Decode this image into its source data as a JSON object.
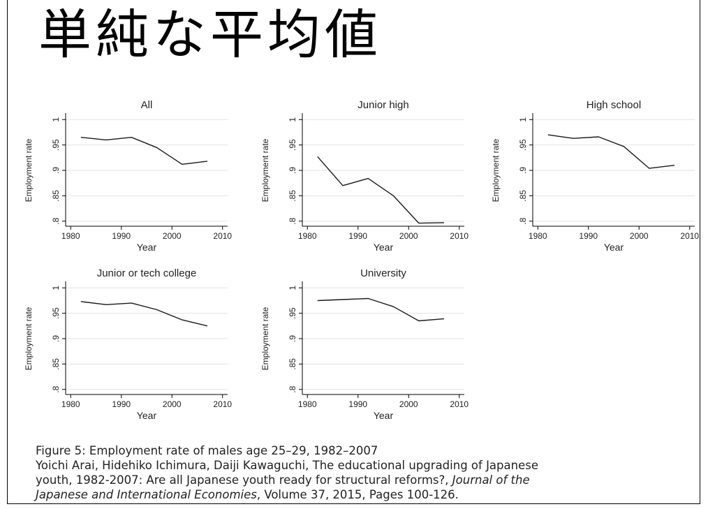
{
  "slide": {
    "title": "単純な平均値"
  },
  "chart_data": [
    {
      "type": "line",
      "title": "All",
      "xlabel": "Year",
      "ylabel": "Employment rate",
      "x": [
        1982,
        1987,
        1992,
        1997,
        2002,
        2007
      ],
      "y": [
        0.965,
        0.96,
        0.965,
        0.945,
        0.912,
        0.918
      ],
      "xlim": [
        1979,
        2011
      ],
      "ylim": [
        0.79,
        1.01
      ],
      "xticks": [
        1980,
        1990,
        2000,
        2010
      ],
      "xtick_labels": [
        "1980",
        "1990",
        "2000",
        "2010"
      ],
      "yticks": [
        0.8,
        0.85,
        0.9,
        0.95,
        1
      ],
      "ytick_labels": [
        ".8",
        ".85",
        ".9",
        ".95",
        "1"
      ],
      "grid": true
    },
    {
      "type": "line",
      "title": "Junior high",
      "xlabel": "Year",
      "ylabel": "Employment rate",
      "x": [
        1982,
        1987,
        1992,
        1997,
        2002,
        2007
      ],
      "y": [
        0.927,
        0.87,
        0.884,
        0.85,
        0.796,
        0.797
      ],
      "xlim": [
        1979,
        2011
      ],
      "ylim": [
        0.79,
        1.01
      ],
      "xticks": [
        1980,
        1990,
        2000,
        2010
      ],
      "xtick_labels": [
        "1980",
        "1990",
        "2000",
        "2010"
      ],
      "yticks": [
        0.8,
        0.85,
        0.9,
        0.95,
        1
      ],
      "ytick_labels": [
        ".8",
        ".85",
        ".9",
        ".95",
        "1"
      ],
      "grid": true
    },
    {
      "type": "line",
      "title": "High school",
      "xlabel": "Year",
      "ylabel": "Employment rate",
      "x": [
        1982,
        1987,
        1992,
        1997,
        2002,
        2007
      ],
      "y": [
        0.97,
        0.963,
        0.966,
        0.947,
        0.904,
        0.91
      ],
      "xlim": [
        1979,
        2011
      ],
      "ylim": [
        0.79,
        1.01
      ],
      "xticks": [
        1980,
        1990,
        2000,
        2010
      ],
      "xtick_labels": [
        "1980",
        "1990",
        "2000",
        "2010"
      ],
      "yticks": [
        0.8,
        0.85,
        0.9,
        0.95,
        1
      ],
      "ytick_labels": [
        ".8",
        ".85",
        ".9",
        ".95",
        "1"
      ],
      "grid": true
    },
    {
      "type": "line",
      "title": "Junior or tech college",
      "xlabel": "Year",
      "ylabel": "Employment rate",
      "x": [
        1982,
        1987,
        1992,
        1997,
        2002,
        2007
      ],
      "y": [
        0.973,
        0.967,
        0.97,
        0.957,
        0.937,
        0.925
      ],
      "xlim": [
        1979,
        2011
      ],
      "ylim": [
        0.79,
        1.01
      ],
      "xticks": [
        1980,
        1990,
        2000,
        2010
      ],
      "xtick_labels": [
        "1980",
        "1990",
        "2000",
        "2010"
      ],
      "yticks": [
        0.8,
        0.85,
        0.9,
        0.95,
        1
      ],
      "ytick_labels": [
        ".8",
        ".85",
        ".9",
        ".95",
        "1"
      ],
      "grid": true
    },
    {
      "type": "line",
      "title": "University",
      "xlabel": "Year",
      "ylabel": "Employment rate",
      "x": [
        1982,
        1987,
        1992,
        1997,
        2002,
        2007
      ],
      "y": [
        0.975,
        0.977,
        0.979,
        0.963,
        0.935,
        0.939
      ],
      "xlim": [
        1979,
        2011
      ],
      "ylim": [
        0.79,
        1.01
      ],
      "xticks": [
        1980,
        1990,
        2000,
        2010
      ],
      "xtick_labels": [
        "1980",
        "1990",
        "2000",
        "2010"
      ],
      "yticks": [
        0.8,
        0.85,
        0.9,
        0.95,
        1
      ],
      "ytick_labels": [
        ".8",
        ".85",
        ".9",
        ".95",
        "1"
      ],
      "grid": true
    }
  ],
  "caption": {
    "line1": "Figure 5: Employment rate of males age 25–29, 1982–2007",
    "line2": "Yoichi Arai, Hidehiko Ichimura, Daiji Kawaguchi, The educational upgrading of Japanese",
    "line3_a": "youth, 1982-2007: Are all Japanese youth ready for structural reforms?, ",
    "line3_b": "Journal of the",
    "line4_a": "Japanese and International Economies",
    "line4_b": ", Volume 37, 2015, Pages 100-126."
  }
}
